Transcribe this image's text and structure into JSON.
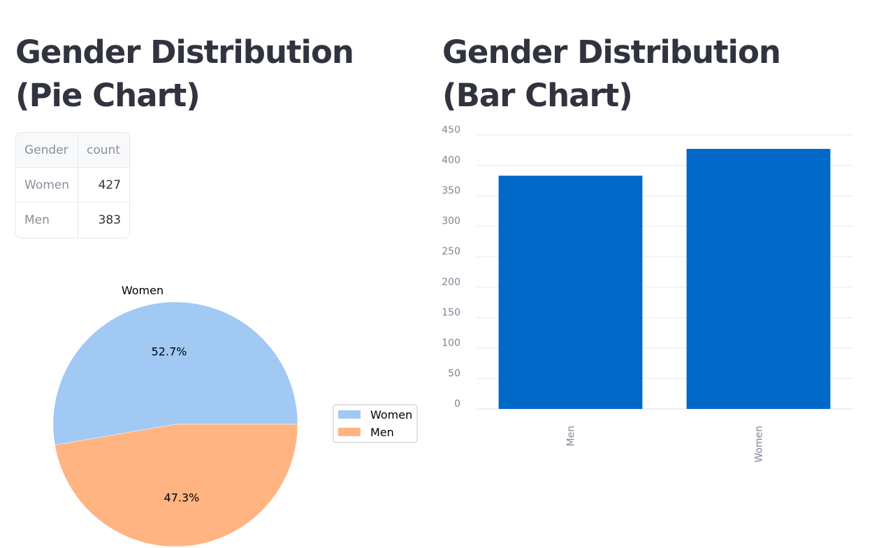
{
  "pie_section": {
    "title": "Gender Distribution (Pie Chart)"
  },
  "bar_section": {
    "title": "Gender Distribution (Bar Chart)"
  },
  "table": {
    "headers": [
      "Gender",
      "count"
    ],
    "rows": [
      {
        "Gender": "Women",
        "count": "427"
      },
      {
        "Gender": "Men",
        "count": "383"
      }
    ]
  },
  "chart_data": [
    {
      "type": "pie",
      "labels": [
        "Women",
        "Men"
      ],
      "values": [
        427,
        383
      ],
      "percent_labels": [
        "52.7%",
        "47.3%"
      ],
      "colors": [
        "#a1c9f4",
        "#ffb482"
      ],
      "legend": [
        "Women",
        "Men"
      ],
      "legend_position": "right",
      "outer_label": "Women"
    },
    {
      "type": "bar",
      "categories": [
        "Men",
        "Women"
      ],
      "values": [
        383,
        427
      ],
      "color": "#0068c9",
      "ylim": [
        0,
        450
      ],
      "yticks": [
        0,
        50,
        100,
        150,
        200,
        250,
        300,
        350,
        400,
        450
      ],
      "grid": true,
      "xlabel": "",
      "ylabel": ""
    }
  ]
}
